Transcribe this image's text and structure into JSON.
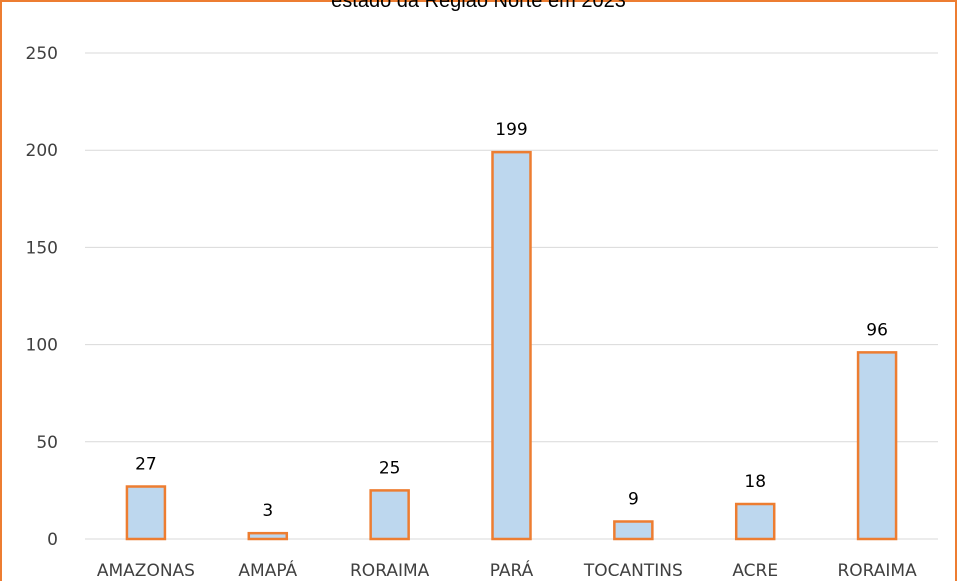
{
  "chart_data": {
    "type": "bar",
    "title": "estado da Região Norte em 2023",
    "categories": [
      "AMAZONAS",
      "AMAPÁ",
      "RORAIMA",
      "PARÁ",
      "TOCANTINS",
      "ACRE",
      "RORAIMA"
    ],
    "values": [
      27,
      3,
      25,
      199,
      9,
      18,
      96
    ],
    "data_labels": [
      "27",
      "3",
      "25",
      "199",
      "9",
      "18",
      "96"
    ],
    "ylim": [
      0,
      250
    ],
    "yticks": [
      0,
      50,
      100,
      150,
      200,
      250
    ],
    "ytick_labels": [
      "0",
      "50",
      "100",
      "150",
      "200",
      "250"
    ],
    "grid": true,
    "legend": "none",
    "colors": {
      "bar_fill": "#BDD7EE",
      "bar_stroke": "#ED7D31",
      "gridline": "#D9D9D9",
      "border": "#ED7D31"
    }
  }
}
